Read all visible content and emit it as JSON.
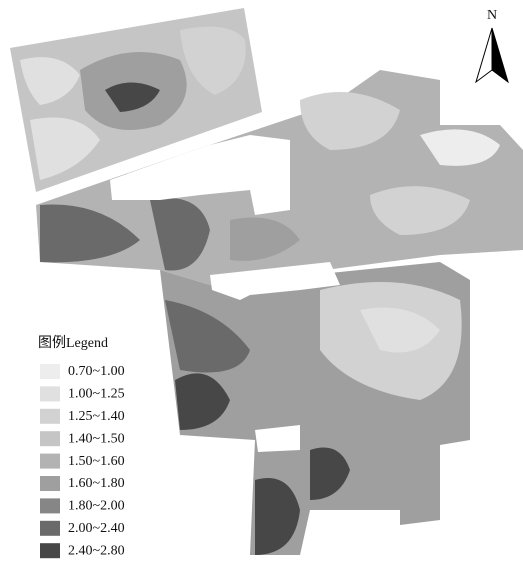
{
  "map": {
    "north_label": "N",
    "legend": {
      "title": "图例Legend",
      "items": [
        {
          "label": "0.70~1.00",
          "color": "#ededed"
        },
        {
          "label": "1.00~1.25",
          "color": "#e0e0e0"
        },
        {
          "label": "1.25~1.40",
          "color": "#d2d2d2"
        },
        {
          "label": "1.40~1.50",
          "color": "#c5c5c5"
        },
        {
          "label": "1.50~1.60",
          "color": "#b3b3b3"
        },
        {
          "label": "1.60~1.80",
          "color": "#9f9f9f"
        },
        {
          "label": "1.80~2.00",
          "color": "#868686"
        },
        {
          "label": "2.00~2.40",
          "color": "#6a6a6a"
        },
        {
          "label": "2.40~2.80",
          "color": "#474747"
        }
      ]
    }
  }
}
